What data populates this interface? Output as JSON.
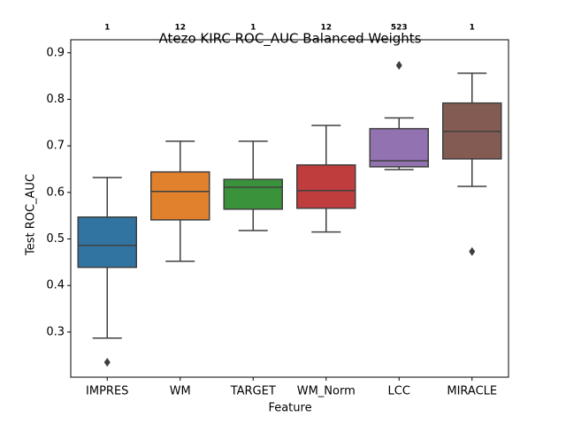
{
  "chart_data": {
    "type": "box",
    "title": "Atezo KIRC ROC_AUC Balanced Weights",
    "x_label": "Feature",
    "y_label": "Test ROC_AUC",
    "categories": [
      "IMPRES",
      "WM",
      "TARGET",
      "WM_Norm",
      "LCC",
      "MIRACLE"
    ],
    "annotations": [
      "1",
      "12",
      "1",
      "12",
      "523",
      "1"
    ],
    "colors": [
      "#3274a1",
      "#e1812c",
      "#3a923a",
      "#c03d3e",
      "#9372b2",
      "#845b53"
    ],
    "boxes": [
      {
        "whisker_low": 0.287,
        "q1": 0.439,
        "median": 0.486,
        "q3": 0.547,
        "whisker_high": 0.632,
        "outliers": [
          0.235
        ]
      },
      {
        "whisker_low": 0.452,
        "q1": 0.541,
        "median": 0.602,
        "q3": 0.644,
        "whisker_high": 0.71,
        "outliers": []
      },
      {
        "whisker_low": 0.518,
        "q1": 0.564,
        "median": 0.611,
        "q3": 0.628,
        "whisker_high": 0.71,
        "outliers": []
      },
      {
        "whisker_low": 0.515,
        "q1": 0.566,
        "median": 0.604,
        "q3": 0.659,
        "whisker_high": 0.744,
        "outliers": []
      },
      {
        "whisker_low": 0.649,
        "q1": 0.655,
        "median": 0.668,
        "q3": 0.737,
        "whisker_high": 0.76,
        "outliers": [
          0.873
        ]
      },
      {
        "whisker_low": 0.613,
        "q1": 0.672,
        "median": 0.731,
        "q3": 0.792,
        "whisker_high": 0.856,
        "outliers": [
          0.473
        ]
      }
    ],
    "ylim": [
      0.203,
      0.928
    ],
    "yticks": [
      0.3,
      0.4,
      0.5,
      0.6,
      0.7,
      0.8,
      0.9
    ],
    "grid": false
  }
}
